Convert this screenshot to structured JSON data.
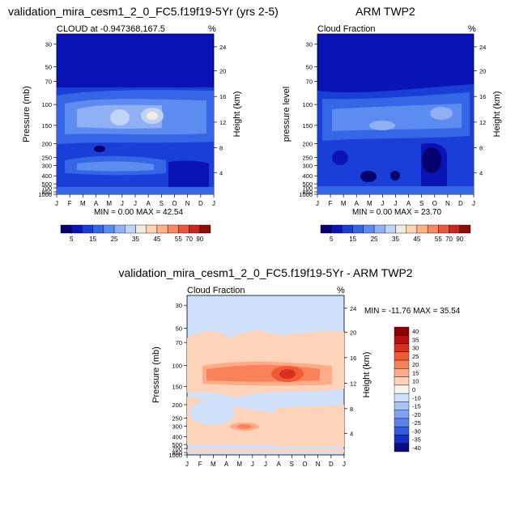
{
  "chart_data": [
    {
      "type": "heatmap",
      "title": "validation_mira_cesm1_2_0_FC5.f19f19-5Yr (yrs 2-5)",
      "subtitle_left": "CLOUD at -0.947368,167.5",
      "subtitle_right": "%",
      "xlabel": "",
      "ylabel": "Pressure (mb)",
      "ylabel_right": "Height (km)",
      "x_ticks": [
        "J",
        "F",
        "M",
        "A",
        "M",
        "J",
        "J",
        "A",
        "S",
        "O",
        "N",
        "D",
        "J"
      ],
      "y_ticks": [
        "30",
        "50",
        "70",
        "100",
        "150",
        "200",
        "250",
        "300",
        "400",
        "500",
        "700",
        "850",
        "1000"
      ],
      "y_ticks_right": [
        "24",
        "20",
        "16",
        "12",
        "8",
        "4"
      ],
      "stats": "MIN =   0.00 MAX =  42.54",
      "colorbar_labels": [
        "5",
        "15",
        "25",
        "35",
        "45",
        "55",
        "70",
        "90"
      ]
    },
    {
      "type": "heatmap",
      "title": "ARM TWP2",
      "subtitle_left": "Cloud Fraction",
      "subtitle_right": "%",
      "xlabel": "",
      "ylabel": "pressure level",
      "ylabel_right": "Height (km)",
      "x_ticks": [
        "J",
        "F",
        "M",
        "A",
        "M",
        "J",
        "J",
        "A",
        "S",
        "O",
        "N",
        "D",
        "J"
      ],
      "y_ticks": [
        "30",
        "50",
        "70",
        "100",
        "150",
        "200",
        "250",
        "300",
        "400",
        "500",
        "700",
        "850",
        "1000"
      ],
      "y_ticks_right": [
        "24",
        "20",
        "16",
        "12",
        "8",
        "4"
      ],
      "stats": "MIN =   0.00 MAX =  23.70",
      "colorbar_labels": [
        "5",
        "15",
        "25",
        "35",
        "45",
        "55",
        "70",
        "90"
      ]
    },
    {
      "type": "heatmap",
      "title": "validation_mira_cesm1_2_0_FC5.f19f19-5Yr - ARM TWP2",
      "subtitle_left": "Cloud Fraction",
      "subtitle_right": "%",
      "xlabel": "",
      "ylabel": "Pressure (mb)",
      "ylabel_right": "Height (km)",
      "x_ticks": [
        "J",
        "F",
        "M",
        "A",
        "M",
        "J",
        "J",
        "A",
        "S",
        "O",
        "N",
        "D",
        "J"
      ],
      "y_ticks": [
        "30",
        "50",
        "70",
        "100",
        "150",
        "200",
        "250",
        "300",
        "400",
        "500",
        "700",
        "850",
        "1000"
      ],
      "y_ticks_right": [
        "24",
        "20",
        "16",
        "12",
        "8",
        "4"
      ],
      "stats": "MIN = -11.76 MAX =  35.54",
      "colorbar_labels": [
        "40",
        "35",
        "30",
        "25",
        "20",
        "15",
        "10",
        "0",
        "-10",
        "-15",
        "-20",
        "-25",
        "-30",
        "-35",
        "-40"
      ]
    }
  ],
  "palettes": {
    "seq": [
      "#08006e",
      "#0a14b4",
      "#1a3fd8",
      "#3566e6",
      "#5d8cf0",
      "#8fb1f4",
      "#c1d4f7",
      "#f2ece0",
      "#fcd2b4",
      "#fbb18a",
      "#f68862",
      "#e9583f",
      "#c7281e",
      "#8e0b0b"
    ],
    "diff": [
      "#8b0000",
      "#b80f0f",
      "#d9301e",
      "#ef5b35",
      "#f9825a",
      "#fcac88",
      "#fdd3b9",
      "#f4f4f0",
      "#cfe0fb",
      "#a8c3f6",
      "#7fa3f0",
      "#5b82e8",
      "#3459dc",
      "#1432c0",
      "#080c86"
    ]
  }
}
